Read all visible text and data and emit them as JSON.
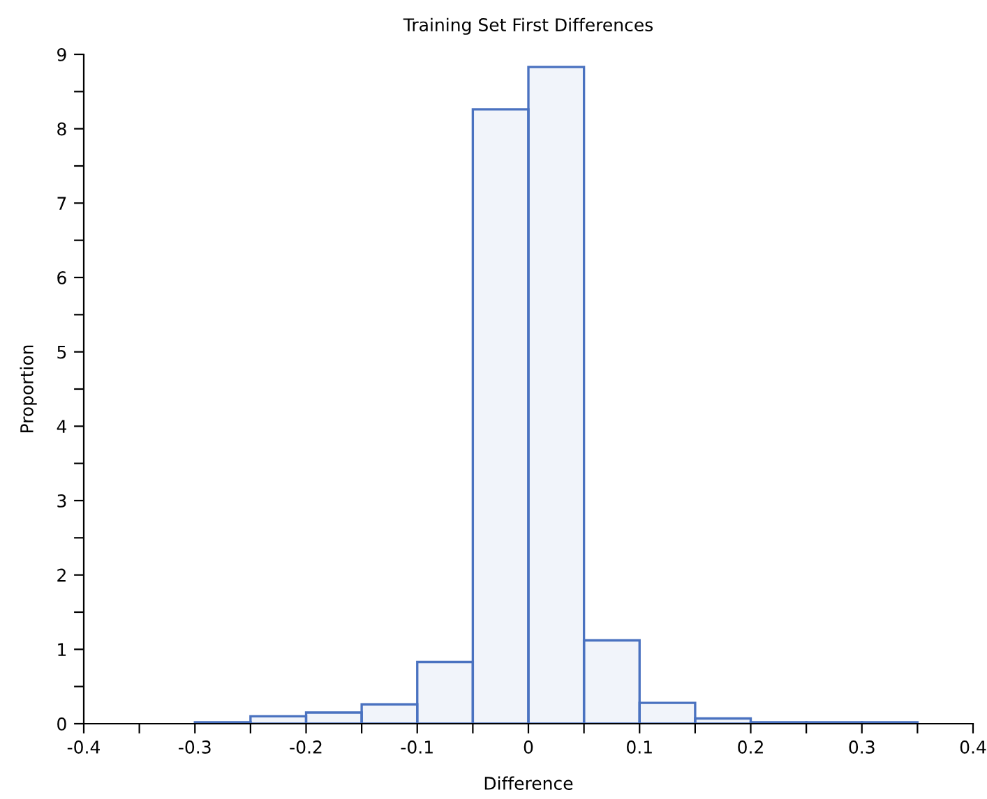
{
  "chart_data": {
    "type": "histogram",
    "title": "Training Set First Differences",
    "xlabel": "Difference",
    "ylabel": "Proportion",
    "bins": [
      -0.3,
      -0.25,
      -0.2,
      -0.15,
      -0.1,
      -0.05,
      0,
      0.05,
      0.1,
      0.15,
      0.2,
      0.25,
      0.3,
      0.35
    ],
    "values": [
      0.02,
      0.1,
      0.15,
      0.26,
      0.83,
      8.26,
      8.83,
      1.12,
      0.28,
      0.07,
      0.02,
      0.02,
      0.02
    ],
    "color": "#4a72c0",
    "xlim": [
      -0.4,
      0.4
    ],
    "ylim": [
      0,
      9
    ],
    "xticks": [
      -0.4,
      {
        "value": -0.35,
        "label": null
      },
      -0.3,
      {
        "value": -0.25,
        "label": null
      },
      -0.2,
      {
        "value": -0.15,
        "label": null
      },
      -0.1,
      {
        "value": -0.05,
        "label": null
      },
      0,
      {
        "value": 0.05,
        "label": null
      },
      0.1,
      {
        "value": 0.15,
        "label": null
      },
      0.2,
      {
        "value": 0.25,
        "label": null
      },
      0.3,
      {
        "value": 0.35,
        "label": null
      },
      0.4
    ],
    "yticks": [
      0,
      {
        "value": 0.5,
        "label": null
      },
      1,
      {
        "value": 1.5,
        "label": null
      },
      2,
      {
        "value": 2.5,
        "label": null
      },
      3,
      {
        "value": 3.5,
        "label": null
      },
      4,
      {
        "value": 4.5,
        "label": null
      },
      5,
      {
        "value": 5.5,
        "label": null
      },
      6,
      {
        "value": 6.5,
        "label": null
      },
      7,
      {
        "value": 7.5,
        "label": null
      },
      8,
      {
        "value": 8.5,
        "label": null
      },
      9
    ],
    "grid": false
  }
}
